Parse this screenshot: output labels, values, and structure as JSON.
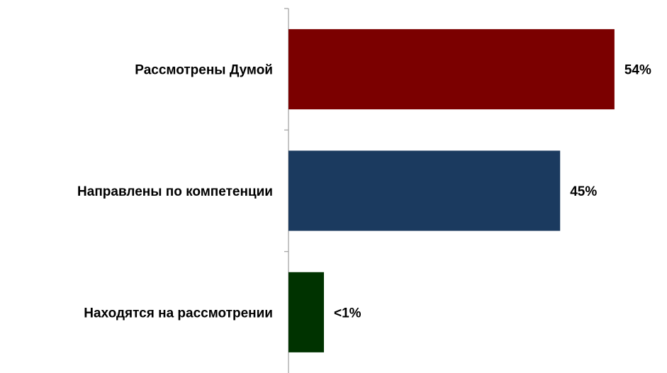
{
  "chart_data": {
    "type": "bar",
    "orientation": "horizontal",
    "categories": [
      "Рассмотрены Думой",
      "Направлены по компетенции",
      "Находятся на рассмотрении"
    ],
    "values": [
      54,
      45,
      0.5
    ],
    "value_labels": [
      "54%",
      "45%",
      "<1%"
    ],
    "colors": [
      "#7b0000",
      "#1b3a5f",
      "#003300"
    ],
    "axis_color": "#a6a6a6",
    "xlim": [
      0,
      62
    ],
    "grid": false,
    "legend": "none"
  }
}
